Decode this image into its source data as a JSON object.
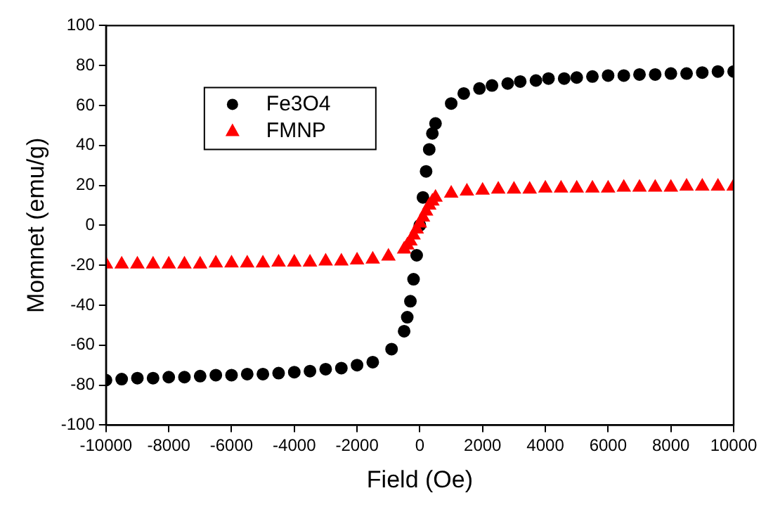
{
  "chart_data": {
    "type": "scatter",
    "xlabel": "Field (Oe)",
    "ylabel": "Momnet (emu/g)",
    "xlim": [
      -10000,
      10000
    ],
    "ylim": [
      -100,
      100
    ],
    "xticks": [
      -10000,
      -8000,
      -6000,
      -4000,
      -2000,
      0,
      2000,
      4000,
      6000,
      8000,
      10000
    ],
    "yticks": [
      -100,
      -80,
      -60,
      -40,
      -20,
      0,
      20,
      40,
      60,
      80,
      100
    ],
    "grid": false,
    "legend": "top left",
    "series": [
      {
        "name": "Fe3O4",
        "color": "#000000",
        "marker": "circle",
        "x": [
          -10000,
          -9500,
          -9000,
          -8500,
          -8000,
          -7500,
          -7000,
          -6500,
          -6000,
          -5500,
          -5000,
          -4500,
          -4000,
          -3500,
          -3000,
          -2500,
          -2000,
          -1500,
          -900,
          -500,
          -400,
          -300,
          -200,
          -100,
          0,
          100,
          200,
          300,
          400,
          500,
          1000,
          1400,
          1900,
          2300,
          2800,
          3200,
          3700,
          4100,
          4600,
          5000,
          5500,
          6000,
          6500,
          7000,
          7500,
          8000,
          8500,
          9000,
          9500,
          10000
        ],
        "values": [
          -77.5,
          -77,
          -76.5,
          -76.5,
          -76,
          -76,
          -75.5,
          -75,
          -75,
          -74.5,
          -74.5,
          -74,
          -73.5,
          -73,
          -72,
          -71.5,
          -70,
          -68.5,
          -62,
          -53,
          -46,
          -38,
          -27,
          -15,
          0,
          14,
          27,
          38,
          46,
          51,
          61,
          66,
          68.5,
          70,
          71,
          72,
          72.5,
          73.5,
          73.5,
          74,
          74.5,
          75,
          75,
          75.5,
          75.5,
          76,
          76,
          76.5,
          77,
          77
        ]
      },
      {
        "name": "FMNP",
        "color": "#ff0000",
        "marker": "triangle",
        "x": [
          -10000,
          -9500,
          -9000,
          -8500,
          -8000,
          -7500,
          -7000,
          -6500,
          -6000,
          -5500,
          -5000,
          -4500,
          -4000,
          -3500,
          -3000,
          -2500,
          -2000,
          -1500,
          -1000,
          -500,
          -400,
          -300,
          -200,
          -100,
          0,
          100,
          200,
          300,
          400,
          500,
          1000,
          1500,
          2000,
          2500,
          3000,
          3500,
          4000,
          4500,
          5000,
          5500,
          6000,
          6500,
          7000,
          7500,
          8000,
          8500,
          9000,
          9500,
          10000
        ],
        "values": [
          -19.5,
          -19.5,
          -19.5,
          -19.5,
          -19.5,
          -19.5,
          -19.5,
          -19,
          -19,
          -19,
          -19,
          -18.5,
          -18.5,
          -18.5,
          -18,
          -18,
          -17.5,
          -17,
          -15.5,
          -12,
          -10,
          -8,
          -5,
          -2,
          1,
          4,
          7,
          10,
          12,
          14,
          16,
          17,
          17.5,
          18,
          18,
          18,
          18.5,
          18.5,
          18.5,
          18.5,
          18.5,
          19,
          19,
          19,
          19,
          19.5,
          19.5,
          19.5,
          19.5
        ]
      }
    ]
  }
}
